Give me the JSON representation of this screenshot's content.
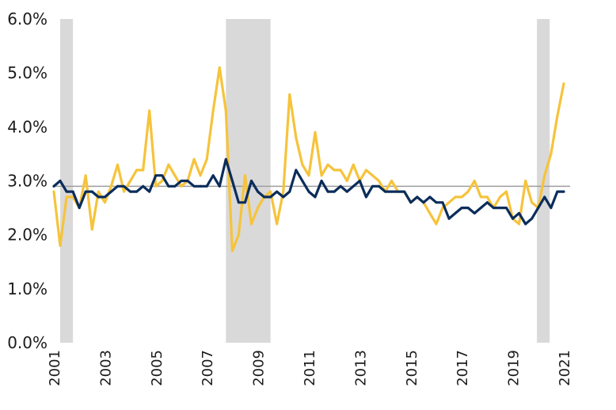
{
  "chart_data": {
    "type": "line",
    "title": "",
    "xlabel": "",
    "ylabel": "",
    "xlim": [
      2001.0,
      2021.25
    ],
    "ylim": [
      0.0,
      6.0
    ],
    "y_ticks": [
      "0.0%",
      "1.0%",
      "2.0%",
      "3.0%",
      "4.0%",
      "5.0%",
      "6.0%"
    ],
    "x_ticks": [
      "2001",
      "2003",
      "2005",
      "2007",
      "2009",
      "2011",
      "2013",
      "2015",
      "2017",
      "2019",
      "2021"
    ],
    "grid": false,
    "legend": "none",
    "colors": {
      "yellow": "#F6C33B",
      "navy": "#0B2D5B",
      "recession": "#D9D9D9",
      "reference": "#9E9E9E"
    },
    "reference_line": 2.9,
    "shaded_periods": [
      [
        2001.25,
        2001.75
      ],
      [
        2007.75,
        2009.5
      ],
      [
        2019.95,
        2020.45
      ]
    ],
    "series": [
      {
        "color": "#F6C33B",
        "x": [
          2001.0,
          2001.25,
          2001.5,
          2001.75,
          2002.0,
          2002.25,
          2002.5,
          2002.75,
          2003.0,
          2003.25,
          2003.5,
          2003.75,
          2004.0,
          2004.25,
          2004.5,
          2004.75,
          2005.0,
          2005.25,
          2005.5,
          2005.75,
          2006.0,
          2006.25,
          2006.5,
          2006.75,
          2007.0,
          2007.25,
          2007.5,
          2007.75,
          2008.0,
          2008.25,
          2008.5,
          2008.75,
          2009.0,
          2009.25,
          2009.5,
          2009.75,
          2010.0,
          2010.25,
          2010.5,
          2010.75,
          2011.0,
          2011.25,
          2011.5,
          2011.75,
          2012.0,
          2012.25,
          2012.5,
          2012.75,
          2013.0,
          2013.25,
          2013.5,
          2013.75,
          2014.0,
          2014.25,
          2014.5,
          2014.75,
          2015.0,
          2015.25,
          2015.5,
          2015.75,
          2016.0,
          2016.25,
          2016.5,
          2016.75,
          2017.0,
          2017.25,
          2017.5,
          2017.75,
          2018.0,
          2018.25,
          2018.5,
          2018.75,
          2019.0,
          2019.25,
          2019.5,
          2019.75,
          2020.0,
          2020.25,
          2020.5,
          2020.75,
          2021.0
        ],
        "values": [
          2.8,
          1.8,
          2.7,
          2.7,
          2.5,
          3.1,
          2.1,
          2.8,
          2.6,
          2.9,
          3.3,
          2.8,
          3.0,
          3.2,
          3.2,
          4.3,
          2.9,
          3.0,
          3.3,
          3.1,
          2.9,
          3.0,
          3.4,
          3.1,
          3.4,
          4.3,
          5.1,
          4.3,
          1.7,
          2.0,
          3.1,
          2.2,
          2.5,
          2.7,
          2.8,
          2.2,
          2.8,
          4.6,
          3.8,
          3.3,
          3.1,
          3.9,
          3.1,
          3.3,
          3.2,
          3.2,
          3.0,
          3.3,
          3.0,
          3.2,
          3.1,
          3.0,
          2.8,
          3.0,
          2.8,
          2.8,
          2.6,
          2.7,
          2.6,
          2.4,
          2.2,
          2.5,
          2.6,
          2.7,
          2.7,
          2.8,
          3.0,
          2.7,
          2.7,
          2.5,
          2.7,
          2.8,
          2.3,
          2.2,
          3.0,
          2.6,
          2.5,
          3.1,
          3.5,
          4.2,
          4.8
        ]
      },
      {
        "color": "#0B2D5B",
        "x": [
          2001.0,
          2001.25,
          2001.5,
          2001.75,
          2002.0,
          2002.25,
          2002.5,
          2002.75,
          2003.0,
          2003.25,
          2003.5,
          2003.75,
          2004.0,
          2004.25,
          2004.5,
          2004.75,
          2005.0,
          2005.25,
          2005.5,
          2005.75,
          2006.0,
          2006.25,
          2006.5,
          2006.75,
          2007.0,
          2007.25,
          2007.5,
          2007.75,
          2008.0,
          2008.25,
          2008.5,
          2008.75,
          2009.0,
          2009.25,
          2009.5,
          2009.75,
          2010.0,
          2010.25,
          2010.5,
          2010.75,
          2011.0,
          2011.25,
          2011.5,
          2011.75,
          2012.0,
          2012.25,
          2012.5,
          2012.75,
          2013.0,
          2013.25,
          2013.5,
          2013.75,
          2014.0,
          2014.25,
          2014.5,
          2014.75,
          2015.0,
          2015.25,
          2015.5,
          2015.75,
          2016.0,
          2016.25,
          2016.5,
          2016.75,
          2017.0,
          2017.25,
          2017.5,
          2017.75,
          2018.0,
          2018.25,
          2018.5,
          2018.75,
          2019.0,
          2019.25,
          2019.5,
          2019.75,
          2020.0,
          2020.25,
          2020.5,
          2020.75,
          2021.0
        ],
        "values": [
          2.9,
          3.0,
          2.8,
          2.8,
          2.5,
          2.8,
          2.8,
          2.7,
          2.7,
          2.8,
          2.9,
          2.9,
          2.8,
          2.8,
          2.9,
          2.8,
          3.1,
          3.1,
          2.9,
          2.9,
          3.0,
          3.0,
          2.9,
          2.9,
          2.9,
          3.1,
          2.9,
          3.4,
          3.0,
          2.6,
          2.6,
          3.0,
          2.8,
          2.7,
          2.7,
          2.8,
          2.7,
          2.8,
          3.2,
          3.0,
          2.8,
          2.7,
          3.0,
          2.8,
          2.8,
          2.9,
          2.8,
          2.9,
          3.0,
          2.7,
          2.9,
          2.9,
          2.8,
          2.8,
          2.8,
          2.8,
          2.6,
          2.7,
          2.6,
          2.7,
          2.6,
          2.6,
          2.3,
          2.4,
          2.5,
          2.5,
          2.4,
          2.5,
          2.6,
          2.5,
          2.5,
          2.5,
          2.3,
          2.4,
          2.2,
          2.3,
          2.5,
          2.7,
          2.5,
          2.8,
          2.8
        ]
      }
    ]
  }
}
